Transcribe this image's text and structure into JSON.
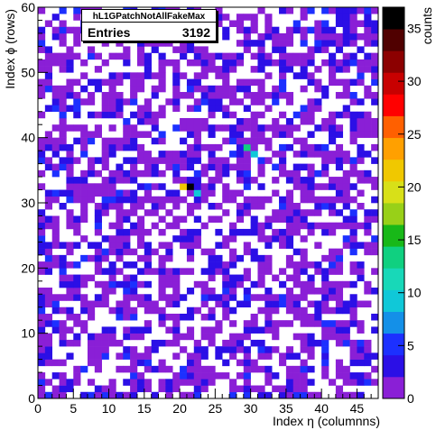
{
  "chart_data": {
    "type": "heatmap",
    "title": "hL1GPatchNotAllFakeMax",
    "xlabel": "Index η (columnns)",
    "ylabel": "Index ϕ (rows)",
    "zlabel": "counts",
    "xlim": [
      0,
      48
    ],
    "ylim": [
      0,
      60
    ],
    "zlim": [
      0,
      37
    ],
    "x_ticks": [
      "0",
      "5",
      "10",
      "15",
      "20",
      "25",
      "30",
      "35",
      "40",
      "45"
    ],
    "y_ticks": [
      "0",
      "10",
      "20",
      "30",
      "40",
      "50",
      "60"
    ],
    "z_ticks": [
      "0",
      "5",
      "10",
      "15",
      "20",
      "25",
      "30",
      "35"
    ],
    "grid": false,
    "bins": {
      "nx": 48,
      "ny": 60
    },
    "distribution": "sparse, mostly 1-3 counts per bin across the whole eta-phi plane; a hotspot near eta=21-22, phi=32 reaching ~37",
    "hotspots": [
      {
        "x": 21,
        "y": 32,
        "value": 37
      },
      {
        "x": 20,
        "y": 32,
        "value": 22
      },
      {
        "x": 22,
        "y": 31,
        "value": 9
      },
      {
        "x": 30,
        "y": 37,
        "value": 10
      },
      {
        "x": 29,
        "y": 38,
        "value": 14
      }
    ],
    "palette": [
      "#8a1fd6",
      "#2b0fe6",
      "#1c30ff",
      "#1490e8",
      "#10c8d8",
      "#18d8b8",
      "#10d080",
      "#18b818",
      "#98d018",
      "#d8e018",
      "#f0c800",
      "#ffa000",
      "#ff6000",
      "#ff0000",
      "#c80000",
      "#8c0000",
      "#500000",
      "#000000"
    ]
  },
  "stats": {
    "title": "hL1GPatchNotAllFakeMax",
    "entries_label": "Entries",
    "entries_value": "3192"
  }
}
